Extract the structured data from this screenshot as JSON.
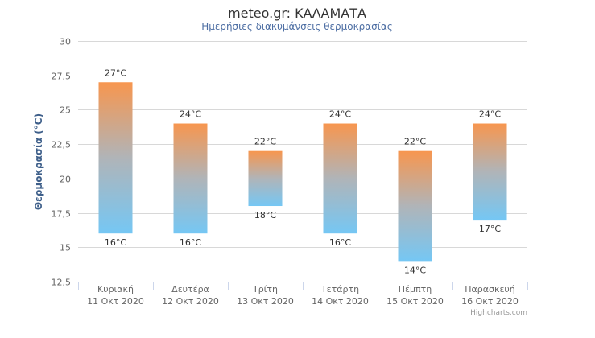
{
  "chart_data": {
    "type": "columnrange",
    "title": "meteo.gr: ΚΑΛΑΜΑΤΑ",
    "subtitle": "Ημερήσιες διακυμάνσεις θερμοκρασίας",
    "ylabel": "Θερμοκρασία (°C)",
    "xlabel": "",
    "ylim": [
      12.5,
      30
    ],
    "yticks": [
      "12,5",
      "15",
      "17,5",
      "20",
      "22,5",
      "25",
      "27,5",
      "30"
    ],
    "ytick_values": [
      12.5,
      15,
      17.5,
      20,
      22.5,
      25,
      27.5,
      30
    ],
    "grid": true,
    "categories": [
      {
        "day": "Κυριακή",
        "date": "11 Οκτ 2020"
      },
      {
        "day": "Δευτέρα",
        "date": "12 Οκτ 2020"
      },
      {
        "day": "Τρίτη",
        "date": "13 Οκτ 2020"
      },
      {
        "day": "Τετάρτη",
        "date": "14 Οκτ 2020"
      },
      {
        "day": "Πέμπτη",
        "date": "15 Οκτ 2020"
      },
      {
        "day": "Παρασκευή",
        "date": "16 Οκτ 2020"
      }
    ],
    "series": [
      {
        "low": [
          16,
          16,
          18,
          16,
          14,
          17
        ],
        "high": [
          27,
          24,
          22,
          24,
          22,
          24
        ],
        "low_labels": [
          "16°C",
          "16°C",
          "18°C",
          "16°C",
          "14°C",
          "17°C"
        ],
        "high_labels": [
          "27°C",
          "24°C",
          "22°C",
          "24°C",
          "22°C",
          "24°C"
        ]
      }
    ],
    "colors": {
      "top": "#f7964f",
      "middle": "#b0b4b8",
      "bottom": "#75c7f4",
      "grid": "#d8d8d8",
      "axis": "#ccd6eb",
      "title": "#333333",
      "subtitle": "#4d6ea3",
      "ylabel": "#3e5f8a"
    }
  },
  "credits": "Highcharts.com"
}
